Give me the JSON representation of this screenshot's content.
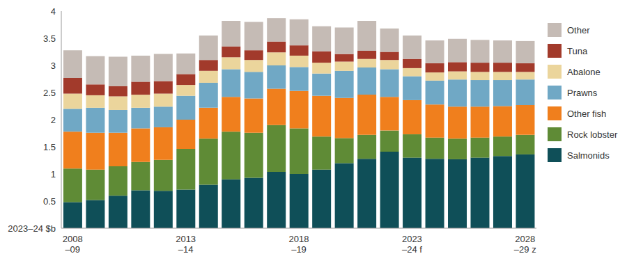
{
  "chart_data": {
    "type": "bar",
    "stacked": true,
    "grid": false,
    "categories": [
      "2008\n–09",
      null,
      null,
      null,
      null,
      "2013\n–14",
      null,
      null,
      null,
      null,
      "2018\n–19",
      null,
      null,
      null,
      null,
      "2023\n–24 f",
      null,
      null,
      null,
      null,
      "2028\n–29 z"
    ],
    "ylim": [
      0,
      4
    ],
    "yticks": [
      {
        "value": 0,
        "label": "2023–24 $b"
      },
      0.5,
      1,
      1.5,
      2,
      2.5,
      3,
      3.5,
      4
    ],
    "legend": "right",
    "series": [
      {
        "name": "Salmonids",
        "color": "#0f4f58",
        "values": [
          0.48,
          0.52,
          0.6,
          0.7,
          0.69,
          0.71,
          0.8,
          0.9,
          0.93,
          1.04,
          1.0,
          1.08,
          1.2,
          1.28,
          1.41,
          1.3,
          1.28,
          1.27,
          1.3,
          1.33,
          1.36
        ]
      },
      {
        "name": "Rock lobster",
        "color": "#5f8b36",
        "values": [
          0.62,
          0.56,
          0.54,
          0.52,
          0.57,
          0.75,
          0.85,
          0.88,
          0.83,
          0.86,
          0.84,
          0.61,
          0.46,
          0.44,
          0.39,
          0.43,
          0.39,
          0.38,
          0.37,
          0.36,
          0.36
        ]
      },
      {
        "name": "Other fish",
        "color": "#f07f1d",
        "values": [
          0.68,
          0.68,
          0.62,
          0.62,
          0.6,
          0.54,
          0.57,
          0.64,
          0.63,
          0.67,
          0.69,
          0.75,
          0.74,
          0.74,
          0.62,
          0.63,
          0.61,
          0.59,
          0.57,
          0.56,
          0.55
        ]
      },
      {
        "name": "Prawns",
        "color": "#70a8c5",
        "values": [
          0.42,
          0.46,
          0.42,
          0.38,
          0.38,
          0.44,
          0.46,
          0.51,
          0.49,
          0.43,
          0.44,
          0.41,
          0.5,
          0.5,
          0.51,
          0.44,
          0.44,
          0.5,
          0.49,
          0.48,
          0.47
        ]
      },
      {
        "name": "Abalone",
        "color": "#ebd59c",
        "values": [
          0.28,
          0.23,
          0.25,
          0.24,
          0.24,
          0.2,
          0.22,
          0.22,
          0.22,
          0.24,
          0.21,
          0.2,
          0.17,
          0.16,
          0.17,
          0.15,
          0.15,
          0.15,
          0.15,
          0.15,
          0.14
        ]
      },
      {
        "name": "Tuna",
        "color": "#a23a2b",
        "values": [
          0.29,
          0.2,
          0.19,
          0.24,
          0.23,
          0.2,
          0.2,
          0.2,
          0.18,
          0.2,
          0.19,
          0.21,
          0.14,
          0.15,
          0.15,
          0.17,
          0.17,
          0.17,
          0.17,
          0.17,
          0.16
        ]
      },
      {
        "name": "Other",
        "color": "#c5bbb5",
        "values": [
          0.51,
          0.52,
          0.54,
          0.48,
          0.5,
          0.38,
          0.45,
          0.47,
          0.52,
          0.43,
          0.48,
          0.46,
          0.49,
          0.55,
          0.43,
          0.43,
          0.42,
          0.43,
          0.42,
          0.41,
          0.41
        ]
      }
    ]
  }
}
